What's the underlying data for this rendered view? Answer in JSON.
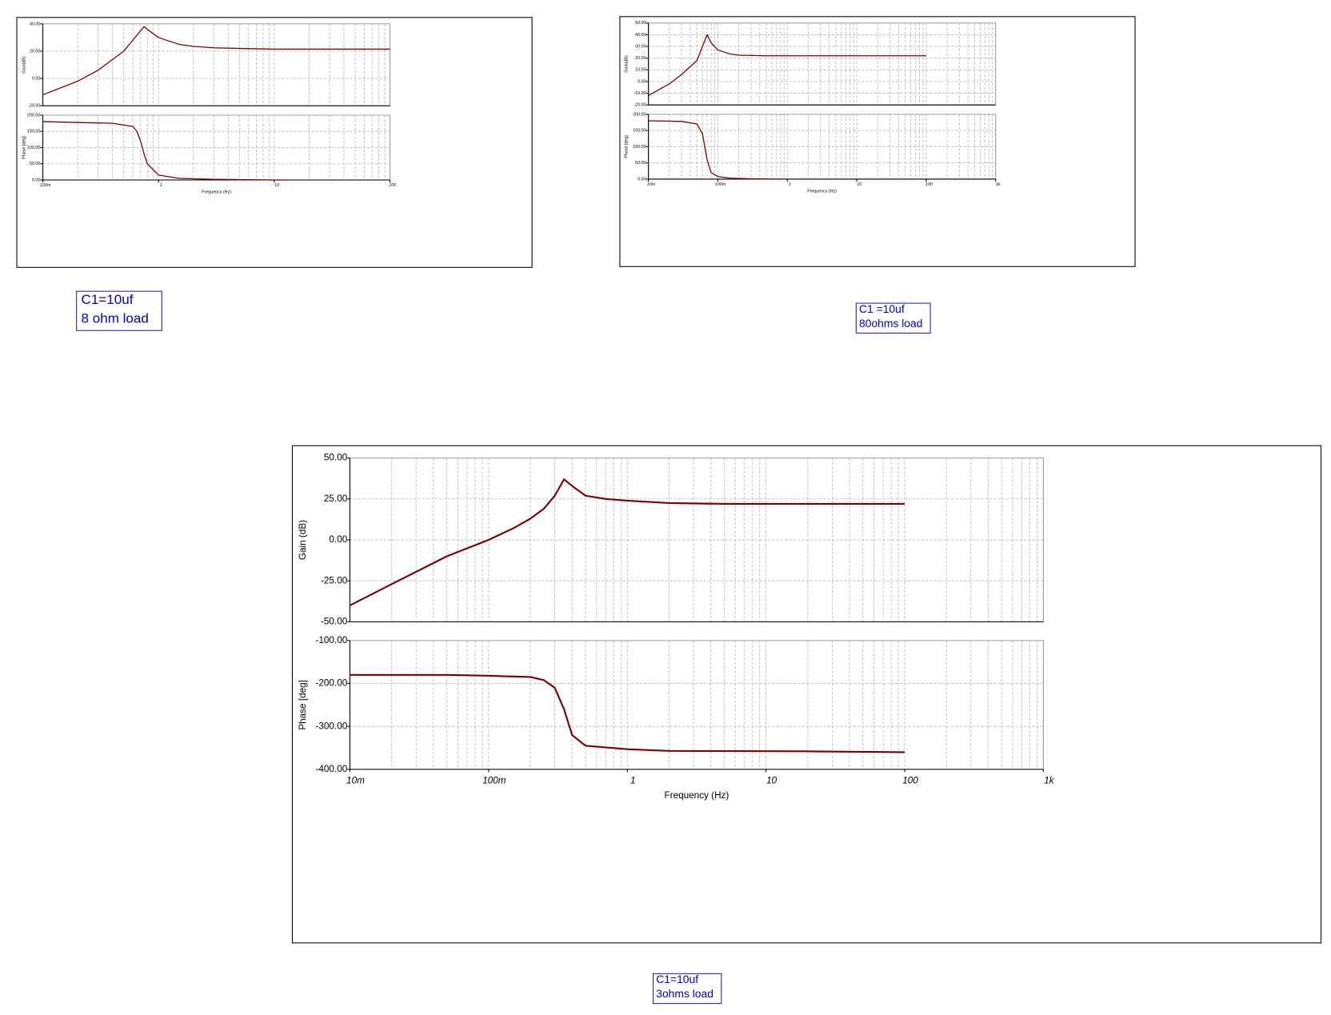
{
  "chart_data": [
    {
      "type": "line",
      "xscale": "log",
      "grid": true,
      "color": "#7b0000",
      "ylabel": "Gain(dB)",
      "xlim": [
        0.1,
        100
      ],
      "ylim": [
        -20,
        40
      ],
      "yticks": [
        {
          "value": -20,
          "label": "-20.00"
        },
        {
          "value": 0,
          "label": "0.00"
        },
        {
          "value": 20,
          "label": "20.00"
        },
        {
          "value": 40,
          "label": "40.00"
        }
      ],
      "x": [
        0.1,
        0.2,
        0.3,
        0.5,
        0.7,
        0.75,
        0.8,
        1,
        1.5,
        2,
        3,
        5,
        10,
        30,
        100
      ],
      "values": [
        -12,
        -2,
        6,
        20,
        35,
        38,
        36,
        30,
        25,
        23.5,
        22.5,
        22,
        21.5,
        21.5,
        21.5
      ]
    },
    {
      "type": "line",
      "xscale": "log",
      "grid": true,
      "color": "#7b0000",
      "ylabel": "Phase [deg]",
      "xlabel": "Frequency (Hz)",
      "xlim": [
        0.1,
        100
      ],
      "xticks": [
        {
          "value": 0.1,
          "label": "100m"
        },
        1,
        10,
        100
      ],
      "ylim": [
        0,
        200
      ],
      "yticks": [
        {
          "value": 0,
          "label": "0.00"
        },
        {
          "value": 50,
          "label": "50.00"
        },
        {
          "value": 100,
          "label": "100.00"
        },
        {
          "value": 150,
          "label": "150.00"
        },
        {
          "value": 200,
          "label": "200.00"
        }
      ],
      "x": [
        0.1,
        0.4,
        0.6,
        0.65,
        0.7,
        0.75,
        0.8,
        1,
        1.5,
        3,
        10,
        13.5
      ],
      "values": [
        180,
        175,
        165,
        150,
        120,
        80,
        50,
        15,
        5,
        2,
        0,
        0
      ]
    },
    {
      "type": "line",
      "xscale": "log",
      "grid": true,
      "color": "#7b0000",
      "ylabel": "Gain(dB)",
      "xlim": [
        0.01,
        1000
      ],
      "ylim": [
        -20,
        50
      ],
      "yticks": [
        {
          "value": -20,
          "label": "-20.00"
        },
        {
          "value": -10,
          "label": "-10.00"
        },
        {
          "value": 0,
          "label": "0.00"
        },
        {
          "value": 10,
          "label": "10.00"
        },
        {
          "value": 20,
          "label": "20.00"
        },
        {
          "value": 30,
          "label": "30.00"
        },
        {
          "value": 40,
          "label": "40.00"
        },
        {
          "value": 50,
          "label": "50.00"
        }
      ],
      "x": [
        0.01,
        0.02,
        0.03,
        0.05,
        0.06,
        0.07,
        0.08,
        0.1,
        0.15,
        0.2,
        0.5,
        1,
        10,
        100
      ],
      "values": [
        -12,
        -2,
        6,
        18,
        30,
        40,
        33,
        27,
        23.5,
        22.5,
        22,
        22,
        22,
        22
      ]
    },
    {
      "type": "line",
      "xscale": "log",
      "grid": true,
      "color": "#7b0000",
      "ylabel": "Phase [deg]",
      "xlabel": "Frequency (Hz)",
      "xlim": [
        0.01,
        1000
      ],
      "xticks": [
        {
          "value": 0.01,
          "label": "10m"
        },
        {
          "value": 0.1,
          "label": "100m"
        },
        1,
        10,
        100,
        {
          "value": 1000,
          "label": "1k"
        }
      ],
      "ylim": [
        0,
        200
      ],
      "yticks": [
        {
          "value": 0,
          "label": "0.00"
        },
        {
          "value": 50,
          "label": "50.00"
        },
        {
          "value": 100,
          "label": "100.00"
        },
        {
          "value": 150,
          "label": "150.00"
        },
        {
          "value": 200,
          "label": "200.00"
        }
      ],
      "x": [
        0.01,
        0.03,
        0.05,
        0.06,
        0.07,
        0.08,
        0.1,
        0.15,
        0.3,
        0.65
      ],
      "values": [
        180,
        178,
        170,
        140,
        60,
        20,
        8,
        3,
        1,
        0
      ]
    },
    {
      "type": "line",
      "xscale": "log",
      "grid": true,
      "color": "#7b0000",
      "ylabel": "Gain (dB)",
      "xlim": [
        0.01,
        1000
      ],
      "ylim": [
        -50,
        50
      ],
      "yticks": [
        {
          "value": -50,
          "label": "-50.00"
        },
        {
          "value": -25,
          "label": "-25.00"
        },
        {
          "value": 0,
          "label": "0.00"
        },
        {
          "value": 25,
          "label": "25.00"
        },
        {
          "value": 50,
          "label": "50.00"
        }
      ],
      "x": [
        0.01,
        0.02,
        0.05,
        0.1,
        0.15,
        0.2,
        0.25,
        0.3,
        0.35,
        0.4,
        0.5,
        0.7,
        1,
        2,
        5,
        10,
        20,
        50,
        100
      ],
      "values": [
        -40,
        -27,
        -10,
        0,
        7,
        13,
        19,
        27,
        37,
        33,
        27,
        25,
        24,
        22.5,
        22,
        22,
        22,
        22,
        22
      ]
    },
    {
      "type": "line",
      "xscale": "log",
      "grid": true,
      "color": "#7b0000",
      "ylabel": "Phase [deg]",
      "xlabel": "Frequency (Hz)",
      "xlim": [
        0.01,
        1000
      ],
      "xticks": [
        {
          "value": 0.01,
          "label": "10m"
        },
        {
          "value": 0.1,
          "label": "100m"
        },
        1,
        10,
        100,
        {
          "value": 1000,
          "label": "1k"
        }
      ],
      "ylim": [
        -400,
        -100
      ],
      "yticks": [
        {
          "value": -400,
          "label": "-400.00"
        },
        {
          "value": -300,
          "label": "-300.00"
        },
        {
          "value": -200,
          "label": "-200.00"
        },
        {
          "value": -100,
          "label": "-100.00"
        }
      ],
      "x": [
        0.01,
        0.05,
        0.1,
        0.2,
        0.25,
        0.3,
        0.35,
        0.4,
        0.5,
        1,
        2,
        20,
        100
      ],
      "values": [
        -180,
        -180,
        -182,
        -185,
        -192,
        -210,
        -260,
        -320,
        -345,
        -353,
        -357,
        -358,
        -360
      ]
    }
  ],
  "captions": [
    {
      "lines": [
        "C1=10uf",
        "8 ohm load"
      ]
    },
    {
      "lines": [
        "C1 =10uf",
        "80ohms load"
      ]
    },
    {
      "lines": [
        "C1=10uf",
        "3ohms load"
      ]
    }
  ]
}
